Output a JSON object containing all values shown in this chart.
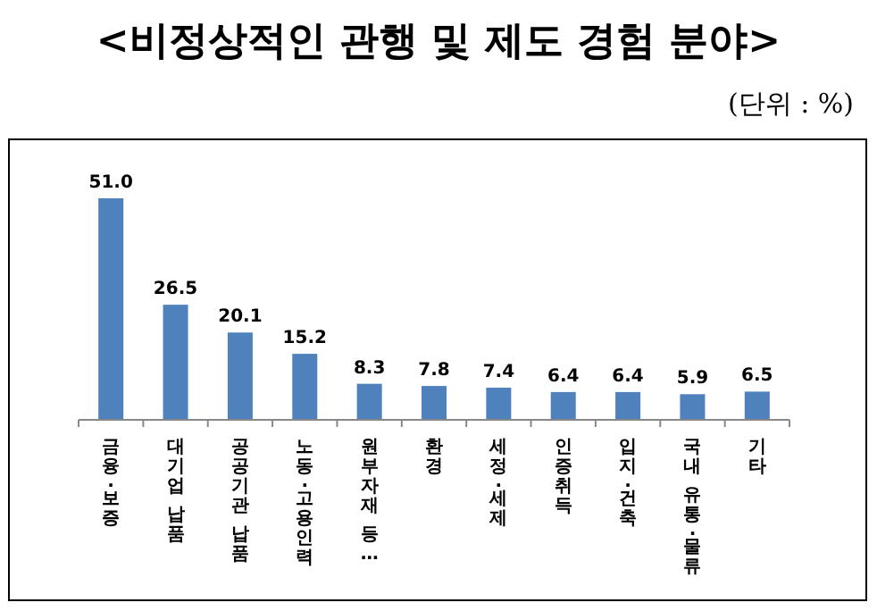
{
  "chart_data": {
    "type": "bar",
    "title": "<비정상적인 관행 및 제도 경험 분야>",
    "subtitle": "(단위 : %)",
    "categories": [
      "금융·보증",
      "대기업 납품",
      "공공기관 납품",
      "노동·고용인력",
      "원부자재 등…",
      "환경",
      "세정·세제",
      "인증취득",
      "입지·건축",
      "국내 유통·물류",
      "기타"
    ],
    "values": [
      51.0,
      26.5,
      20.1,
      15.2,
      8.3,
      7.8,
      7.4,
      6.4,
      6.4,
      5.9,
      6.5
    ],
    "value_labels": [
      "51.0",
      "26.5",
      "20.1",
      "15.2",
      "8.3",
      "7.8",
      "7.4",
      "6.4",
      "6.4",
      "5.9",
      "6.5"
    ],
    "color": "#4f81bd"
  }
}
